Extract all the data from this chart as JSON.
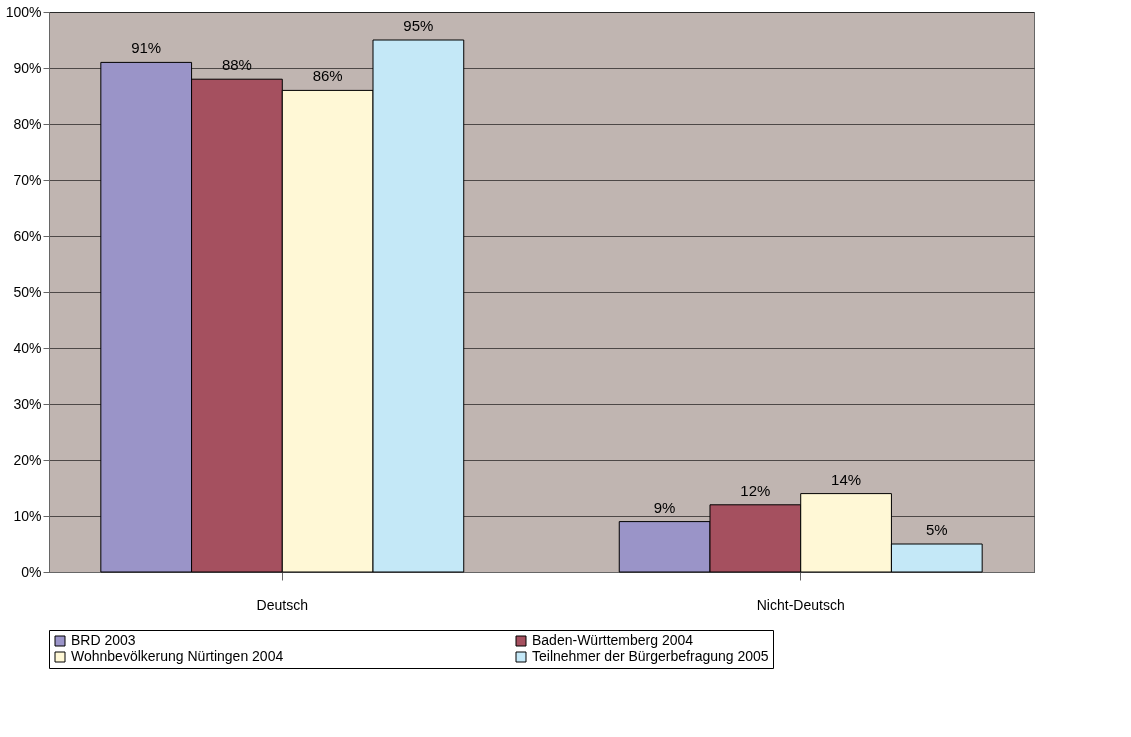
{
  "chart_data": {
    "type": "bar",
    "categories": [
      "Deutsch",
      "Nicht-Deutsch"
    ],
    "series": [
      {
        "name": "BRD 2003",
        "color": "#9a94c8",
        "values": [
          91,
          9
        ],
        "value_labels": [
          "91%",
          "9%"
        ]
      },
      {
        "name": "Baden-Württemberg 2004",
        "color": "#a5505f",
        "values": [
          88,
          12
        ],
        "value_labels": [
          "88%",
          "12%"
        ]
      },
      {
        "name": "Wohnbevölkerung Nürtingen 2004",
        "color": "#fff8d6",
        "values": [
          86,
          14
        ],
        "value_labels": [
          "86%",
          "14%"
        ]
      },
      {
        "name": "Teilnehmer der Bürgerbefragung 2005",
        "color": "#c4e8f7",
        "values": [
          95,
          5
        ],
        "value_labels": [
          "95%",
          "5%"
        ]
      }
    ],
    "ylim": [
      0,
      100
    ],
    "yticks": [
      {
        "value": 0,
        "label": "0%"
      },
      {
        "value": 10,
        "label": "10%"
      },
      {
        "value": 20,
        "label": "20%"
      },
      {
        "value": 30,
        "label": "30%"
      },
      {
        "value": 40,
        "label": "40%"
      },
      {
        "value": 50,
        "label": "50%"
      },
      {
        "value": 60,
        "label": "60%"
      },
      {
        "value": 70,
        "label": "70%"
      },
      {
        "value": 80,
        "label": "80%"
      },
      {
        "value": 90,
        "label": "90%"
      },
      {
        "value": 100,
        "label": "100%"
      }
    ],
    "grid": "y",
    "legend": "bottom"
  }
}
